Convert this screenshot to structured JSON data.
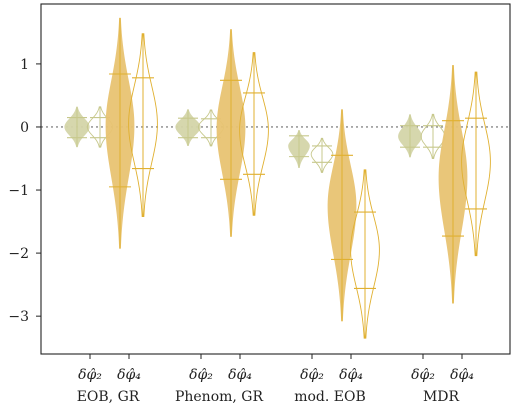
{
  "chart_data": {
    "type": "violin",
    "ylim": [
      -3.6,
      1.95
    ],
    "yticks": [
      -3,
      -2,
      -1,
      0,
      1
    ],
    "ytick_labels": [
      "−3",
      "−2",
      "−1",
      "0",
      "1"
    ],
    "reference_line": 0,
    "colors": {
      "d2": "#d4d5a9",
      "d4": "#e8c372",
      "d4_line": "#e0b030",
      "d2_line": "#c7c88c"
    },
    "groups": [
      {
        "label": "EOB, GR",
        "violins": [
          {
            "param": "δφ̂₂",
            "style": "filled",
            "min": -0.32,
            "max": 0.32,
            "p_low": -0.17,
            "p_high": 0.15,
            "median": 0.0,
            "width": 0.35
          },
          {
            "param": "δφ̂₂",
            "style": "outline",
            "min": -0.32,
            "max": 0.32,
            "p_low": -0.17,
            "p_high": 0.15,
            "median": 0.0,
            "width": 0.35
          },
          {
            "param": "δφ̂₄",
            "style": "filled",
            "min": -1.93,
            "max": 1.73,
            "p_low": -0.95,
            "p_high": 0.84,
            "median": 0.02,
            "width": 0.4
          },
          {
            "param": "δφ̂₄",
            "style": "outline",
            "min": -1.42,
            "max": 1.48,
            "p_low": -0.66,
            "p_high": 0.78,
            "median": 0.05,
            "width": 0.4
          }
        ]
      },
      {
        "label": "Phenom, GR",
        "violins": [
          {
            "param": "δφ̂₂",
            "style": "filled",
            "min": -0.3,
            "max": 0.28,
            "p_low": -0.17,
            "p_high": 0.14,
            "median": 0.0,
            "width": 0.35
          },
          {
            "param": "δφ̂₂",
            "style": "outline",
            "min": -0.3,
            "max": 0.27,
            "p_low": -0.17,
            "p_high": 0.13,
            "median": 0.0,
            "width": 0.35
          },
          {
            "param": "δφ̂₄",
            "style": "filled",
            "min": -1.74,
            "max": 1.55,
            "p_low": -0.83,
            "p_high": 0.74,
            "median": -0.02,
            "width": 0.4
          },
          {
            "param": "δφ̂₄",
            "style": "outline",
            "min": -1.4,
            "max": 1.18,
            "p_low": -0.75,
            "p_high": 0.54,
            "median": -0.05,
            "width": 0.4
          }
        ]
      },
      {
        "label": "mod. EOB",
        "violins": [
          {
            "param": "δφ̂₂",
            "style": "filled",
            "min": -0.65,
            "max": -0.05,
            "p_low": -0.47,
            "p_high": -0.14,
            "median": -0.3,
            "width": 0.3
          },
          {
            "param": "δφ̂₂",
            "style": "outline",
            "min": -0.72,
            "max": -0.18,
            "p_low": -0.56,
            "p_high": -0.3,
            "median": -0.43,
            "width": 0.3
          },
          {
            "param": "δφ̂₄",
            "style": "filled",
            "min": -3.08,
            "max": 0.28,
            "p_low": -2.1,
            "p_high": -0.45,
            "median": -1.25,
            "width": 0.4
          },
          {
            "param": "δφ̂₄",
            "style": "outline",
            "min": -3.35,
            "max": -0.68,
            "p_low": -2.56,
            "p_high": -1.35,
            "median": -1.95,
            "width": 0.4
          }
        ]
      },
      {
        "label": "MDR",
        "violins": [
          {
            "param": "δφ̂₂",
            "style": "filled",
            "min": -0.48,
            "max": 0.2,
            "p_low": -0.32,
            "p_high": 0.02,
            "median": -0.15,
            "width": 0.33
          },
          {
            "param": "δφ̂₂",
            "style": "outline",
            "min": -0.5,
            "max": 0.2,
            "p_low": -0.32,
            "p_high": 0.02,
            "median": -0.15,
            "width": 0.33
          },
          {
            "param": "δφ̂₄",
            "style": "filled",
            "min": -2.8,
            "max": 0.98,
            "p_low": -1.73,
            "p_high": 0.1,
            "median": -0.8,
            "width": 0.4
          },
          {
            "param": "δφ̂₄",
            "style": "outline",
            "min": -2.04,
            "max": 0.87,
            "p_low": -1.3,
            "p_high": 0.14,
            "median": -0.55,
            "width": 0.4
          }
        ]
      }
    ],
    "xtick_labels": [
      "δφ̂₂",
      "δφ̂₄"
    ]
  }
}
